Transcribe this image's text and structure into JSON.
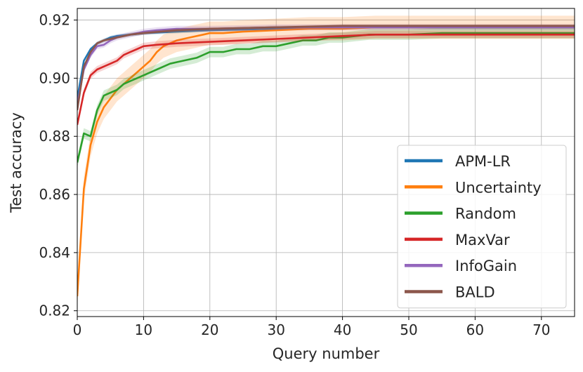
{
  "chart_data": {
    "type": "line",
    "xlabel": "Query number",
    "ylabel": "Test accuracy",
    "xlim": [
      0,
      75
    ],
    "ylim": [
      0.818,
      0.924
    ],
    "xticks": [
      0,
      10,
      20,
      30,
      40,
      50,
      60,
      70
    ],
    "yticks": [
      0.82,
      0.84,
      0.86,
      0.88,
      0.9,
      0.92
    ],
    "ytick_labels": [
      "0.82",
      "0.84",
      "0.86",
      "0.88",
      "0.90",
      "0.92"
    ],
    "grid": true,
    "legend_position": "lower-right",
    "series": [
      {
        "name": "APM-LR",
        "color": "#1f77b4",
        "band": 0.0006,
        "points": [
          [
            0,
            0.893
          ],
          [
            1,
            0.906
          ],
          [
            2,
            0.91
          ],
          [
            3,
            0.912
          ],
          [
            4,
            0.913
          ],
          [
            5,
            0.914
          ],
          [
            6,
            0.9145
          ],
          [
            8,
            0.915
          ],
          [
            10,
            0.9155
          ],
          [
            15,
            0.916
          ],
          [
            20,
            0.9165
          ],
          [
            30,
            0.917
          ],
          [
            40,
            0.9175
          ],
          [
            50,
            0.9175
          ],
          [
            60,
            0.9175
          ],
          [
            75,
            0.9175
          ]
        ]
      },
      {
        "name": "Uncertainty",
        "color": "#ff7f0e",
        "band": 0.004,
        "points": [
          [
            0,
            0.825
          ],
          [
            1,
            0.862
          ],
          [
            2,
            0.877
          ],
          [
            3,
            0.885
          ],
          [
            4,
            0.89
          ],
          [
            5,
            0.893
          ],
          [
            6,
            0.896
          ],
          [
            7,
            0.898
          ],
          [
            8,
            0.9
          ],
          [
            9,
            0.902
          ],
          [
            10,
            0.904
          ],
          [
            11,
            0.906
          ],
          [
            12,
            0.909
          ],
          [
            13,
            0.911
          ],
          [
            14,
            0.912
          ],
          [
            15,
            0.913
          ],
          [
            17,
            0.914
          ],
          [
            19,
            0.915
          ],
          [
            20,
            0.9155
          ],
          [
            22,
            0.9155
          ],
          [
            25,
            0.916
          ],
          [
            30,
            0.9165
          ],
          [
            35,
            0.917
          ],
          [
            40,
            0.917
          ],
          [
            45,
            0.9175
          ],
          [
            50,
            0.9175
          ],
          [
            60,
            0.9175
          ],
          [
            75,
            0.9175
          ]
        ]
      },
      {
        "name": "Random",
        "color": "#2ca02c",
        "band": 0.0018,
        "points": [
          [
            0,
            0.871
          ],
          [
            1,
            0.881
          ],
          [
            2,
            0.88
          ],
          [
            3,
            0.889
          ],
          [
            4,
            0.894
          ],
          [
            5,
            0.895
          ],
          [
            6,
            0.896
          ],
          [
            7,
            0.898
          ],
          [
            8,
            0.899
          ],
          [
            9,
            0.9
          ],
          [
            10,
            0.901
          ],
          [
            12,
            0.903
          ],
          [
            14,
            0.905
          ],
          [
            16,
            0.906
          ],
          [
            18,
            0.907
          ],
          [
            20,
            0.909
          ],
          [
            22,
            0.909
          ],
          [
            24,
            0.91
          ],
          [
            26,
            0.91
          ],
          [
            28,
            0.911
          ],
          [
            30,
            0.911
          ],
          [
            32,
            0.912
          ],
          [
            34,
            0.913
          ],
          [
            36,
            0.913
          ],
          [
            38,
            0.914
          ],
          [
            40,
            0.914
          ],
          [
            42,
            0.9145
          ],
          [
            44,
            0.915
          ],
          [
            46,
            0.915
          ],
          [
            50,
            0.915
          ],
          [
            55,
            0.9155
          ],
          [
            60,
            0.9155
          ],
          [
            65,
            0.9155
          ],
          [
            70,
            0.9155
          ],
          [
            75,
            0.9155
          ]
        ]
      },
      {
        "name": "MaxVar",
        "color": "#d62728",
        "band": 0.0012,
        "points": [
          [
            0,
            0.884
          ],
          [
            1,
            0.895
          ],
          [
            2,
            0.901
          ],
          [
            3,
            0.903
          ],
          [
            4,
            0.904
          ],
          [
            5,
            0.905
          ],
          [
            6,
            0.906
          ],
          [
            7,
            0.908
          ],
          [
            8,
            0.909
          ],
          [
            9,
            0.91
          ],
          [
            10,
            0.911
          ],
          [
            12,
            0.9115
          ],
          [
            15,
            0.912
          ],
          [
            20,
            0.9125
          ],
          [
            25,
            0.913
          ],
          [
            30,
            0.9135
          ],
          [
            35,
            0.914
          ],
          [
            40,
            0.9145
          ],
          [
            45,
            0.915
          ],
          [
            50,
            0.915
          ],
          [
            55,
            0.915
          ],
          [
            60,
            0.915
          ],
          [
            65,
            0.915
          ],
          [
            70,
            0.915
          ],
          [
            75,
            0.915
          ]
        ]
      },
      {
        "name": "InfoGain",
        "color": "#9467bd",
        "band": 0.001,
        "points": [
          [
            0,
            0.891
          ],
          [
            1,
            0.903
          ],
          [
            2,
            0.908
          ],
          [
            3,
            0.911
          ],
          [
            4,
            0.9115
          ],
          [
            5,
            0.913
          ],
          [
            6,
            0.914
          ],
          [
            8,
            0.915
          ],
          [
            10,
            0.916
          ],
          [
            12,
            0.9165
          ],
          [
            15,
            0.917
          ],
          [
            20,
            0.917
          ],
          [
            30,
            0.9175
          ],
          [
            40,
            0.9175
          ],
          [
            50,
            0.9175
          ],
          [
            60,
            0.9175
          ],
          [
            75,
            0.9175
          ]
        ]
      },
      {
        "name": "BALD",
        "color": "#8c564b",
        "band": 0.0006,
        "points": [
          [
            0,
            0.889
          ],
          [
            1,
            0.904
          ],
          [
            2,
            0.909
          ],
          [
            3,
            0.912
          ],
          [
            4,
            0.913
          ],
          [
            5,
            0.9135
          ],
          [
            6,
            0.914
          ],
          [
            8,
            0.915
          ],
          [
            10,
            0.9155
          ],
          [
            15,
            0.9165
          ],
          [
            20,
            0.917
          ],
          [
            30,
            0.9175
          ],
          [
            40,
            0.918
          ],
          [
            50,
            0.918
          ],
          [
            60,
            0.918
          ],
          [
            75,
            0.918
          ]
        ]
      }
    ]
  }
}
